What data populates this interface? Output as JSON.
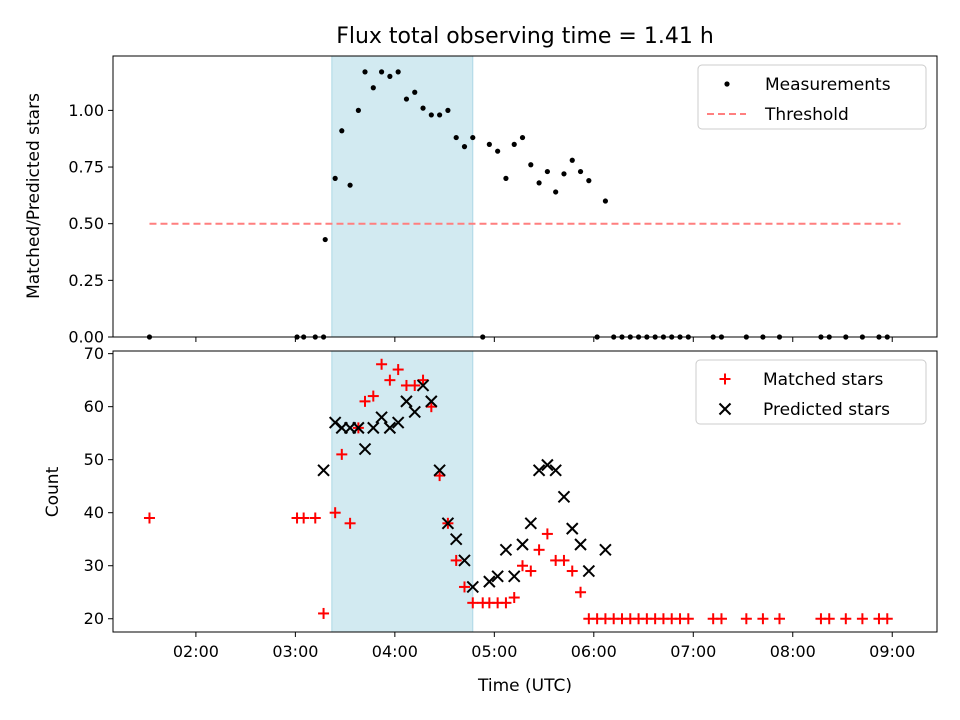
{
  "chart_data": {
    "title": "Flux total observing time = 1.41 h",
    "xlabel": "Time (UTC)",
    "x_ticks": [
      "02:00",
      "03:00",
      "04:00",
      "05:00",
      "06:00",
      "07:00",
      "08:00",
      "09:00"
    ],
    "xlim": [
      "01:10",
      "09:27"
    ],
    "shaded_interval": {
      "start": "03:22",
      "end": "04:47",
      "color": "#add8e6"
    },
    "panels": [
      {
        "type": "scatter",
        "ylabel": "Matched/Predicted stars",
        "ylim": [
          0,
          1.24
        ],
        "y_ticks": [
          "0.00",
          "0.25",
          "0.50",
          "0.75",
          "1.00"
        ],
        "legend_position": "upper right",
        "series": [
          {
            "name": "Measurements",
            "marker": "dot",
            "color": "#000000",
            "points": [
              [
                "01:32",
                0
              ],
              [
                "03:01",
                0
              ],
              [
                "03:05",
                0
              ],
              [
                "03:12",
                0
              ],
              [
                "03:17",
                0
              ],
              [
                "03:18",
                0.43
              ],
              [
                "03:24",
                0.7
              ],
              [
                "03:28",
                0.91
              ],
              [
                "03:33",
                0.67
              ],
              [
                "03:38",
                1.0
              ],
              [
                "03:42",
                1.17
              ],
              [
                "03:47",
                1.1
              ],
              [
                "03:52",
                1.17
              ],
              [
                "03:57",
                1.15
              ],
              [
                "04:02",
                1.17
              ],
              [
                "04:07",
                1.05
              ],
              [
                "04:12",
                1.08
              ],
              [
                "04:17",
                1.01
              ],
              [
                "04:22",
                0.98
              ],
              [
                "04:27",
                0.98
              ],
              [
                "04:32",
                1.0
              ],
              [
                "04:37",
                0.88
              ],
              [
                "04:42",
                0.84
              ],
              [
                "04:47",
                0.88
              ],
              [
                "04:53",
                0
              ],
              [
                "04:57",
                0.85
              ],
              [
                "05:02",
                0.82
              ],
              [
                "05:07",
                0.7
              ],
              [
                "05:12",
                0.85
              ],
              [
                "05:17",
                0.88
              ],
              [
                "05:22",
                0.76
              ],
              [
                "05:27",
                0.68
              ],
              [
                "05:32",
                0.73
              ],
              [
                "05:37",
                0.64
              ],
              [
                "05:42",
                0.72
              ],
              [
                "05:47",
                0.78
              ],
              [
                "05:52",
                0.73
              ],
              [
                "05:57",
                0.69
              ],
              [
                "06:02",
                0
              ],
              [
                "06:07",
                0.6
              ],
              [
                "06:12",
                0
              ],
              [
                "06:17",
                0
              ],
              [
                "06:22",
                0
              ],
              [
                "06:27",
                0
              ],
              [
                "06:32",
                0
              ],
              [
                "06:37",
                0
              ],
              [
                "06:42",
                0
              ],
              [
                "06:47",
                0
              ],
              [
                "06:52",
                0
              ],
              [
                "06:57",
                0
              ],
              [
                "07:12",
                0
              ],
              [
                "07:17",
                0
              ],
              [
                "07:32",
                0
              ],
              [
                "07:42",
                0
              ],
              [
                "07:52",
                0
              ],
              [
                "08:17",
                0
              ],
              [
                "08:22",
                0
              ],
              [
                "08:32",
                0
              ],
              [
                "08:42",
                0
              ],
              [
                "08:52",
                0
              ],
              [
                "08:57",
                0
              ]
            ]
          },
          {
            "name": "Threshold",
            "marker": "dashed-line",
            "color": "#ff7f7f",
            "points": [
              [
                "01:32",
                0.5
              ],
              [
                "09:05",
                0.5
              ]
            ]
          }
        ]
      },
      {
        "type": "scatter",
        "ylabel": "Count",
        "ylim": [
          17.5,
          70.5
        ],
        "y_ticks": [
          "20",
          "30",
          "40",
          "50",
          "60",
          "70"
        ],
        "legend_position": "upper right",
        "series": [
          {
            "name": "Matched stars",
            "marker": "plus",
            "color": "#ff0000",
            "points": [
              [
                "01:32",
                39
              ],
              [
                "03:01",
                39
              ],
              [
                "03:05",
                39
              ],
              [
                "03:12",
                39
              ],
              [
                "03:17",
                21
              ],
              [
                "03:24",
                40
              ],
              [
                "03:28",
                51
              ],
              [
                "03:33",
                38
              ],
              [
                "03:38",
                56
              ],
              [
                "03:42",
                61
              ],
              [
                "03:47",
                62
              ],
              [
                "03:52",
                68
              ],
              [
                "03:57",
                65
              ],
              [
                "04:02",
                67
              ],
              [
                "04:07",
                64
              ],
              [
                "04:12",
                64
              ],
              [
                "04:17",
                65
              ],
              [
                "04:22",
                60
              ],
              [
                "04:27",
                47
              ],
              [
                "04:32",
                38
              ],
              [
                "04:37",
                31
              ],
              [
                "04:42",
                26
              ],
              [
                "04:47",
                23
              ],
              [
                "04:53",
                23
              ],
              [
                "04:57",
                23
              ],
              [
                "05:02",
                23
              ],
              [
                "05:07",
                23
              ],
              [
                "05:12",
                24
              ],
              [
                "05:17",
                30
              ],
              [
                "05:22",
                29
              ],
              [
                "05:27",
                33
              ],
              [
                "05:32",
                36
              ],
              [
                "05:37",
                31
              ],
              [
                "05:42",
                31
              ],
              [
                "05:47",
                29
              ],
              [
                "05:52",
                25
              ],
              [
                "05:57",
                20
              ],
              [
                "06:02",
                20
              ],
              [
                "06:07",
                20
              ],
              [
                "06:12",
                20
              ],
              [
                "06:17",
                20
              ],
              [
                "06:22",
                20
              ],
              [
                "06:27",
                20
              ],
              [
                "06:32",
                20
              ],
              [
                "06:37",
                20
              ],
              [
                "06:42",
                20
              ],
              [
                "06:47",
                20
              ],
              [
                "06:52",
                20
              ],
              [
                "06:57",
                20
              ],
              [
                "07:12",
                20
              ],
              [
                "07:17",
                20
              ],
              [
                "07:32",
                20
              ],
              [
                "07:42",
                20
              ],
              [
                "07:52",
                20
              ],
              [
                "08:17",
                20
              ],
              [
                "08:22",
                20
              ],
              [
                "08:32",
                20
              ],
              [
                "08:42",
                20
              ],
              [
                "08:52",
                20
              ],
              [
                "08:57",
                20
              ]
            ]
          },
          {
            "name": "Predicted stars",
            "marker": "x",
            "color": "#000000",
            "points": [
              [
                "03:17",
                48
              ],
              [
                "03:24",
                57
              ],
              [
                "03:28",
                56
              ],
              [
                "03:33",
                56
              ],
              [
                "03:38",
                56
              ],
              [
                "03:42",
                52
              ],
              [
                "03:47",
                56
              ],
              [
                "03:52",
                58
              ],
              [
                "03:57",
                56
              ],
              [
                "04:02",
                57
              ],
              [
                "04:07",
                61
              ],
              [
                "04:12",
                59
              ],
              [
                "04:17",
                64
              ],
              [
                "04:22",
                61
              ],
              [
                "04:27",
                48
              ],
              [
                "04:32",
                38
              ],
              [
                "04:37",
                35
              ],
              [
                "04:42",
                31
              ],
              [
                "04:47",
                26
              ],
              [
                "04:57",
                27
              ],
              [
                "05:02",
                28
              ],
              [
                "05:07",
                33
              ],
              [
                "05:12",
                28
              ],
              [
                "05:17",
                34
              ],
              [
                "05:22",
                38
              ],
              [
                "05:27",
                48
              ],
              [
                "05:32",
                49
              ],
              [
                "05:37",
                48
              ],
              [
                "05:42",
                43
              ],
              [
                "05:47",
                37
              ],
              [
                "05:52",
                34
              ],
              [
                "05:57",
                29
              ],
              [
                "06:07",
                33
              ]
            ]
          }
        ]
      }
    ]
  }
}
